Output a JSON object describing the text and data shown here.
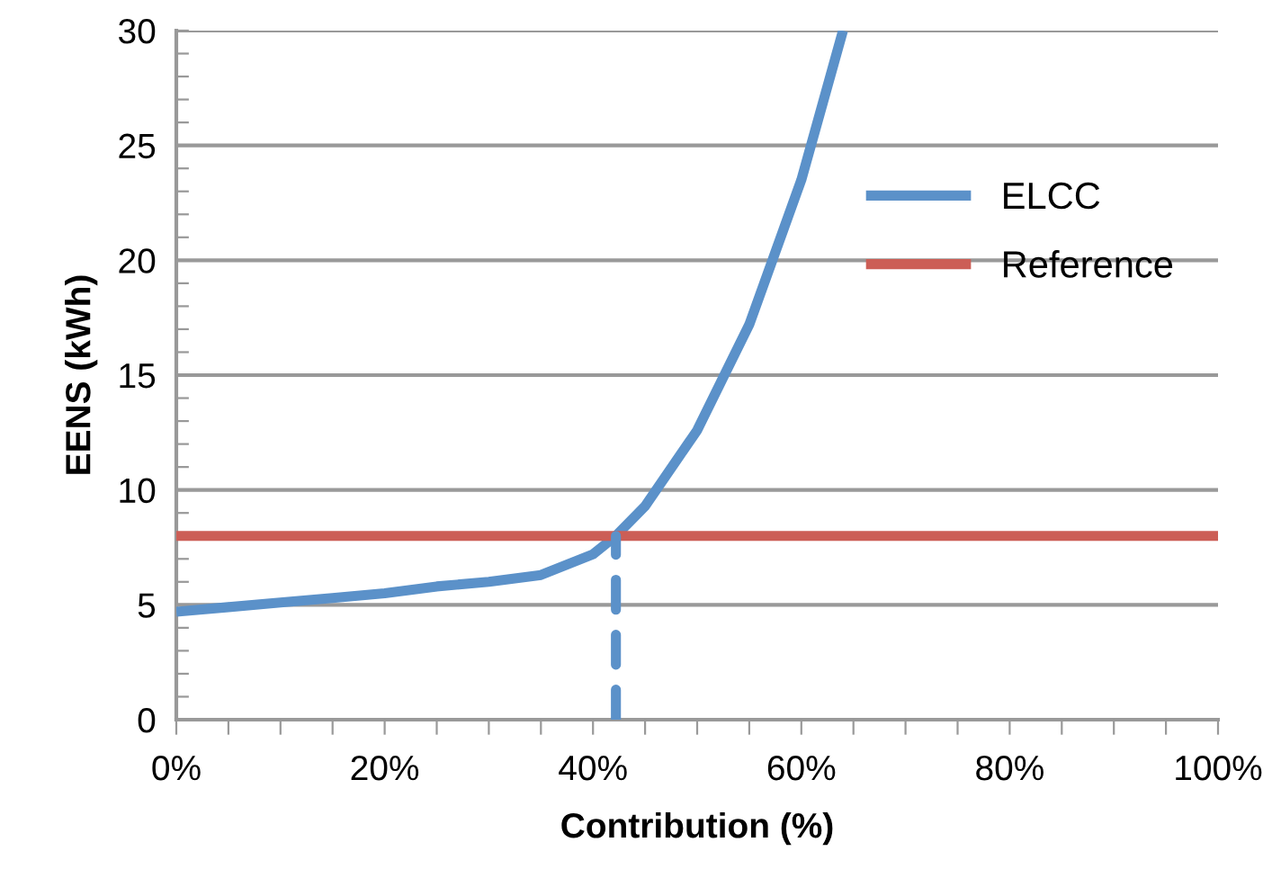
{
  "chart_data": {
    "type": "line",
    "xlabel": "Contribution (%)",
    "ylabel": "EENS (kWh)",
    "xlim": [
      0,
      100
    ],
    "ylim": [
      0,
      30
    ],
    "xticks": [
      {
        "value": 0,
        "label": "0%"
      },
      {
        "value": 5,
        "label": null
      },
      {
        "value": 10,
        "label": null
      },
      {
        "value": 15,
        "label": null
      },
      {
        "value": 20,
        "label": "20%"
      },
      {
        "value": 25,
        "label": null
      },
      {
        "value": 30,
        "label": null
      },
      {
        "value": 35,
        "label": null
      },
      {
        "value": 40,
        "label": "40%"
      },
      {
        "value": 45,
        "label": null
      },
      {
        "value": 50,
        "label": null
      },
      {
        "value": 55,
        "label": null
      },
      {
        "value": 60,
        "label": "60%"
      },
      {
        "value": 65,
        "label": null
      },
      {
        "value": 70,
        "label": null
      },
      {
        "value": 75,
        "label": null
      },
      {
        "value": 80,
        "label": "80%"
      },
      {
        "value": 85,
        "label": null
      },
      {
        "value": 90,
        "label": null
      },
      {
        "value": 95,
        "label": null
      },
      {
        "value": 100,
        "label": "100%"
      }
    ],
    "yticks": [
      0,
      {
        "value": 1,
        "label": null
      },
      {
        "value": 2,
        "label": null
      },
      {
        "value": 3,
        "label": null
      },
      {
        "value": 4,
        "label": null
      },
      5,
      {
        "value": 6,
        "label": null
      },
      {
        "value": 7,
        "label": null
      },
      {
        "value": 8,
        "label": null
      },
      {
        "value": 9,
        "label": null
      },
      10,
      {
        "value": 11,
        "label": null
      },
      {
        "value": 12,
        "label": null
      },
      {
        "value": 13,
        "label": null
      },
      {
        "value": 14,
        "label": null
      },
      15,
      {
        "value": 16,
        "label": null
      },
      {
        "value": 17,
        "label": null
      },
      {
        "value": 18,
        "label": null
      },
      {
        "value": 19,
        "label": null
      },
      20,
      {
        "value": 21,
        "label": null
      },
      {
        "value": 22,
        "label": null
      },
      {
        "value": 23,
        "label": null
      },
      {
        "value": 24,
        "label": null
      },
      25,
      {
        "value": 26,
        "label": null
      },
      {
        "value": 27,
        "label": null
      },
      {
        "value": 28,
        "label": null
      },
      {
        "value": 29,
        "label": null
      },
      30
    ],
    "grid": "y",
    "legend": "top right",
    "marker": "none",
    "line_style": "solid",
    "series": [
      {
        "name": "ELCC",
        "color": "#5b91c9",
        "x": [
          0,
          5,
          10,
          15,
          20,
          25,
          30,
          35,
          40,
          42.2,
          45,
          50,
          55,
          60,
          64
        ],
        "values": [
          4.7,
          4.9,
          5.1,
          5.3,
          5.5,
          5.8,
          6.0,
          6.3,
          7.2,
          8.0,
          9.3,
          12.6,
          17.2,
          23.5,
          30
        ]
      },
      {
        "name": "Reference",
        "color": "#cc5e56",
        "x": [
          0,
          100
        ],
        "values": [
          8,
          8
        ]
      },
      {
        "color": "#5b91c9",
        "x": [
          42.2,
          42.2
        ],
        "values": [
          0,
          8
        ],
        "line_style": "dashed"
      }
    ]
  }
}
